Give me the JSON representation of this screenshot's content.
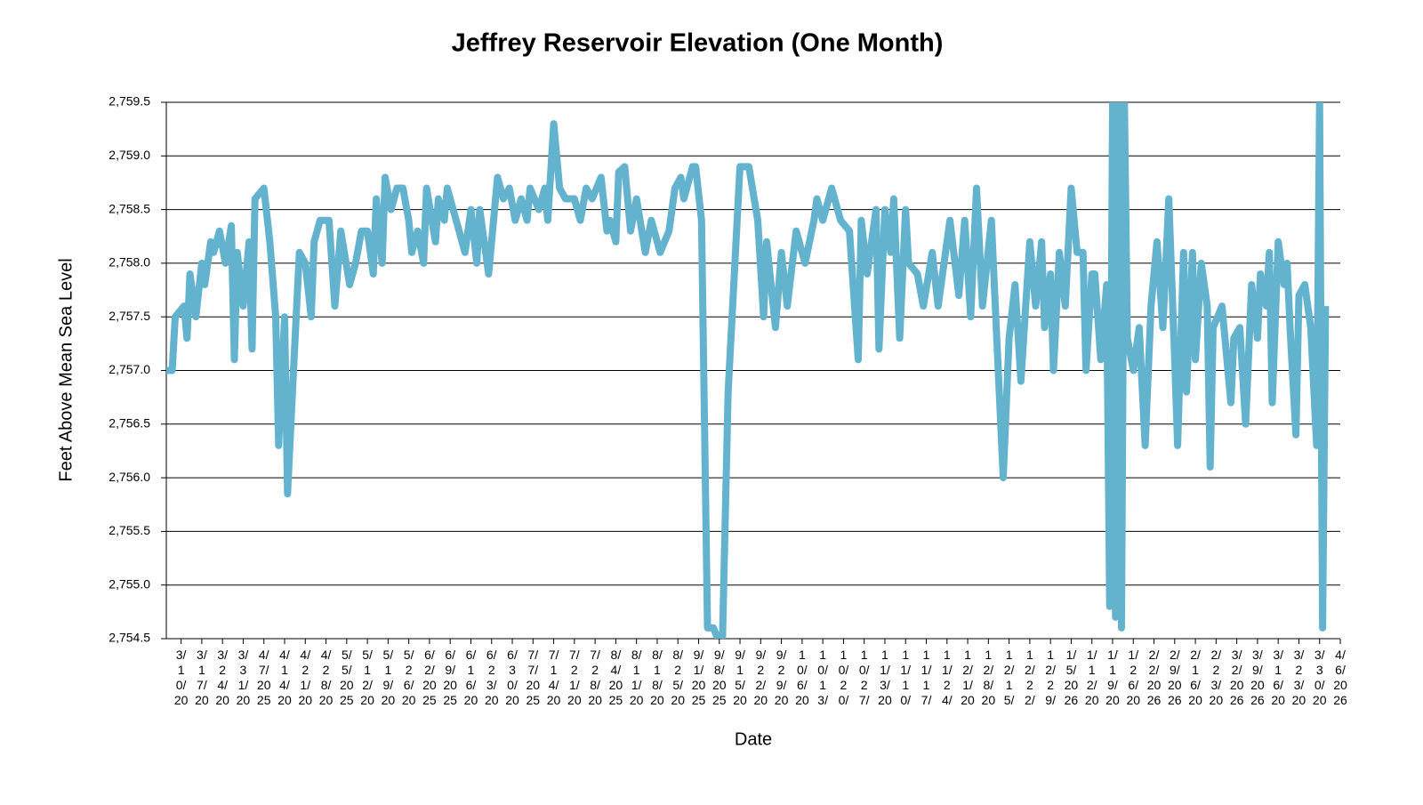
{
  "chart_data": {
    "type": "line",
    "title": "Jeffrey Reservoir Elevation (One Month)",
    "xlabel": "Date",
    "ylabel": "Feet Above Mean Sea Level",
    "color": "#63b3cf",
    "grid": true,
    "xlim": [
      "3/5/2025",
      "4/6/2026"
    ],
    "xticks": [
      "3/10/2025",
      "3/17/2025",
      "3/24/2025",
      "3/31/2025",
      "4/7/2025",
      "4/14/2025",
      "4/21/2025",
      "4/28/2025",
      "5/5/2025",
      "5/12/2025",
      "5/19/2025",
      "5/26/2025",
      "6/2/2025",
      "6/9/2025",
      "6/16/2025",
      "6/23/2025",
      "6/30/2025",
      "7/7/2025",
      "7/14/2025",
      "7/21/2025",
      "7/28/2025",
      "8/4/2025",
      "8/11/2025",
      "8/18/2025",
      "8/25/2025",
      "9/1/2025",
      "9/8/2025",
      "9/15/2025",
      "9/22/2025",
      "9/29/2025",
      "10/6/2025",
      "10/13/2025",
      "10/20/2025",
      "10/27/2025",
      "11/3/2025",
      "11/10/2025",
      "11/17/2025",
      "11/24/2025",
      "12/1/2025",
      "12/8/2025",
      "12/15/2025",
      "12/22/2025",
      "12/29/2025",
      "1/5/2026",
      "1/12/2026",
      "1/19/2026",
      "1/26/2026",
      "2/2/2026",
      "2/9/2026",
      "2/16/2026",
      "2/23/2026",
      "3/2/2026",
      "3/9/2026",
      "3/16/2026",
      "3/23/2026",
      "3/30/2026",
      "4/6/2026"
    ],
    "ylim": [
      2754.5,
      2759.5
    ],
    "yticks": [
      {
        "value": 2754.5,
        "label": "2,754.5"
      },
      {
        "value": 2755,
        "label": "2,755.0"
      },
      {
        "value": 2755.5,
        "label": "2,755.5"
      },
      {
        "value": 2756,
        "label": "2,756.0"
      },
      {
        "value": 2756.5,
        "label": "2,756.5"
      },
      {
        "value": 2757,
        "label": "2,757.0"
      },
      {
        "value": 2757.5,
        "label": "2,757.5"
      },
      {
        "value": 2758,
        "label": "2,758.0"
      },
      {
        "value": 2758.5,
        "label": "2,758.5"
      },
      {
        "value": 2759,
        "label": "2,759.0"
      },
      {
        "value": 2759.5,
        "label": "2,759.5"
      }
    ],
    "x": [
      "3/5/2025",
      "3/7/2025",
      "3/8/2025",
      "3/11/2025",
      "3/12/2025",
      "3/13/2025",
      "3/15/2025",
      "3/17/2025",
      "3/18/2025",
      "3/20/2025",
      "3/21/2025",
      "3/23/2025",
      "3/25/2025",
      "3/27/2025",
      "3/28/2025",
      "3/29/2025",
      "3/31/2025",
      "4/2/2025",
      "4/3/2025",
      "4/4/2025",
      "4/7/2025",
      "4/9/2025",
      "4/11/2025",
      "4/12/2025",
      "4/14/2025",
      "4/15/2025",
      "4/17/2025",
      "4/19/2025",
      "4/21/2025",
      "4/23/2025",
      "4/24/2025",
      "4/26/2025",
      "4/29/2025",
      "5/1/2025",
      "5/3/2025",
      "5/6/2025",
      "5/8/2025",
      "5/10/2025",
      "5/12/2025",
      "5/14/2025",
      "5/15/2025",
      "5/17/2025",
      "5/18/2025",
      "5/20/2025",
      "5/22/2025",
      "5/24/2025",
      "5/26/2025",
      "5/27/2025",
      "5/29/2025",
      "5/31/2025",
      "6/1/2025",
      "6/4/2025",
      "6/5/2025",
      "6/7/2025",
      "6/8/2025",
      "6/10/2025",
      "6/12/2025",
      "6/14/2025",
      "6/16/2025",
      "6/18/2025",
      "6/19/2025",
      "6/22/2025",
      "6/25/2025",
      "6/27/2025",
      "6/29/2025",
      "7/1/2025",
      "7/3/2025",
      "7/5/2025",
      "7/6/2025",
      "7/9/2025",
      "7/11/2025",
      "7/12/2025",
      "7/14/2025",
      "7/16/2025",
      "7/18/2025",
      "7/21/2025",
      "7/23/2025",
      "7/25/2025",
      "7/27/2025",
      "7/30/2025",
      "8/1/2025",
      "8/2/2025",
      "8/4/2025",
      "8/5/2025",
      "8/7/2025",
      "8/9/2025",
      "8/11/2025",
      "8/14/2025",
      "8/16/2025",
      "8/19/2025",
      "8/22/2025",
      "8/24/2025",
      "8/26/2025",
      "8/27/2025",
      "8/30/2025",
      "8/31/2025",
      "9/2/2025",
      "9/4/2025",
      "9/6/2025",
      "9/9/2025",
      "9/11/2025",
      "9/15/2025",
      "9/18/2025",
      "9/21/2025",
      "9/23/2025",
      "9/24/2025",
      "9/27/2025",
      "9/29/2025",
      "10/1/2025",
      "10/4/2025",
      "10/7/2025",
      "10/10/2025",
      "10/11/2025",
      "10/13/2025",
      "10/16/2025",
      "10/19/2025",
      "10/22/2025",
      "10/25/2025",
      "10/26/2025",
      "10/28/2025",
      "10/31/2025",
      "11/1/2025",
      "11/3/2025",
      "11/5/2025",
      "11/6/2025",
      "11/8/2025",
      "11/10/2025",
      "11/11/2025",
      "11/14/2025",
      "11/16/2025",
      "11/19/2025",
      "11/21/2025",
      "11/25/2025",
      "11/28/2025",
      "11/30/2025",
      "12/2/2025",
      "12/4/2025",
      "12/6/2025",
      "12/9/2025",
      "12/11/2025",
      "12/13/2025",
      "12/15/2025",
      "12/17/2025",
      "12/19/2025",
      "12/22/2025",
      "12/24/2025",
      "12/26/2025",
      "12/27/2025",
      "12/29/2025",
      "12/30/2025",
      "1/1/2026",
      "1/3/2026",
      "1/5/2026",
      "1/7/2026",
      "1/9/2026",
      "1/10/2026",
      "1/12/2026",
      "1/13/2026",
      "1/15/2026",
      "1/17/2026",
      "1/18/2026",
      "1/19/2026",
      "1/20/2026",
      "1/21/2026",
      "1/22/2026",
      "1/23/2026",
      "1/24/2026",
      "1/26/2026",
      "1/28/2026",
      "1/30/2026",
      "2/1/2026",
      "2/3/2026",
      "2/5/2026",
      "2/7/2026",
      "2/9/2026",
      "2/10/2026",
      "2/12/2026",
      "2/13/2026",
      "2/15/2026",
      "2/16/2026",
      "2/18/2026",
      "2/20/2026",
      "2/21/2026",
      "2/22/2026",
      "2/25/2026",
      "2/28/2026",
      "3/1/2026",
      "3/3/2026",
      "3/5/2026",
      "3/7/2026",
      "3/9/2026",
      "3/10/2026",
      "3/12/2026",
      "3/13/2026",
      "3/14/2026",
      "3/16/2026",
      "3/18/2026",
      "3/19/2026",
      "3/20/2026",
      "3/22/2026",
      "3/23/2026",
      "3/25/2026",
      "3/27/2026",
      "3/29/2026",
      "3/30/2026",
      "3/31/2026",
      "4/1/2026"
    ],
    "values": [
      2757.0,
      2757.0,
      2757.5,
      2757.6,
      2757.3,
      2757.9,
      2757.5,
      2758.0,
      2757.8,
      2758.2,
      2758.1,
      2758.3,
      2758.0,
      2758.35,
      2757.1,
      2758.1,
      2757.6,
      2758.2,
      2757.2,
      2758.6,
      2758.7,
      2758.2,
      2757.5,
      2756.3,
      2757.5,
      2755.85,
      2757.0,
      2758.1,
      2758.0,
      2757.5,
      2758.2,
      2758.4,
      2758.4,
      2757.6,
      2758.3,
      2757.8,
      2758.0,
      2758.3,
      2758.3,
      2757.9,
      2758.6,
      2758.0,
      2758.8,
      2758.5,
      2758.7,
      2758.7,
      2758.4,
      2758.1,
      2758.3,
      2758.0,
      2758.7,
      2758.2,
      2758.6,
      2758.4,
      2758.7,
      2758.5,
      2758.3,
      2758.1,
      2758.5,
      2758.0,
      2758.5,
      2757.9,
      2758.8,
      2758.6,
      2758.7,
      2758.4,
      2758.6,
      2758.4,
      2758.7,
      2758.5,
      2758.7,
      2758.4,
      2759.3,
      2758.7,
      2758.6,
      2758.6,
      2758.4,
      2758.7,
      2758.6,
      2758.8,
      2758.3,
      2758.4,
      2758.2,
      2758.85,
      2758.9,
      2758.3,
      2758.6,
      2758.1,
      2758.4,
      2758.1,
      2758.3,
      2758.7,
      2758.8,
      2758.6,
      2758.9,
      2758.9,
      2758.4,
      2754.6,
      2754.6,
      2754.4,
      2756.8,
      2758.9,
      2758.9,
      2758.4,
      2757.5,
      2758.2,
      2757.4,
      2758.1,
      2757.6,
      2758.3,
      2758.0,
      2758.4,
      2758.6,
      2758.4,
      2758.7,
      2758.4,
      2758.3,
      2757.1,
      2758.4,
      2757.9,
      2758.5,
      2757.2,
      2758.5,
      2758.1,
      2758.6,
      2757.3,
      2758.5,
      2758.0,
      2757.9,
      2757.6,
      2758.1,
      2757.6,
      2758.4,
      2757.7,
      2758.4,
      2757.5,
      2758.7,
      2757.6,
      2758.4,
      2757.2,
      2756.0,
      2757.3,
      2757.8,
      2756.9,
      2758.2,
      2757.6,
      2758.2,
      2757.4,
      2757.9,
      2757.0,
      2758.1,
      2757.6,
      2758.7,
      2758.1,
      2758.1,
      2757.0,
      2757.9,
      2757.9,
      2757.1,
      2757.8,
      2754.8,
      2759.5,
      2754.7,
      2759.5,
      2754.6,
      2759.5,
      2757.3,
      2757.0,
      2757.4,
      2756.3,
      2757.6,
      2758.2,
      2757.4,
      2758.6,
      2757.1,
      2756.3,
      2758.1,
      2756.8,
      2758.1,
      2757.1,
      2758.0,
      2757.6,
      2756.1,
      2757.4,
      2757.6,
      2756.7,
      2757.3,
      2757.4,
      2756.5,
      2757.8,
      2757.3,
      2757.9,
      2757.6,
      2758.1,
      2756.7,
      2758.2,
      2757.8,
      2758.0,
      2757.4,
      2756.4,
      2757.7,
      2757.8,
      2757.4,
      2756.3,
      2759.5,
      2754.6,
      2757.6
    ]
  }
}
